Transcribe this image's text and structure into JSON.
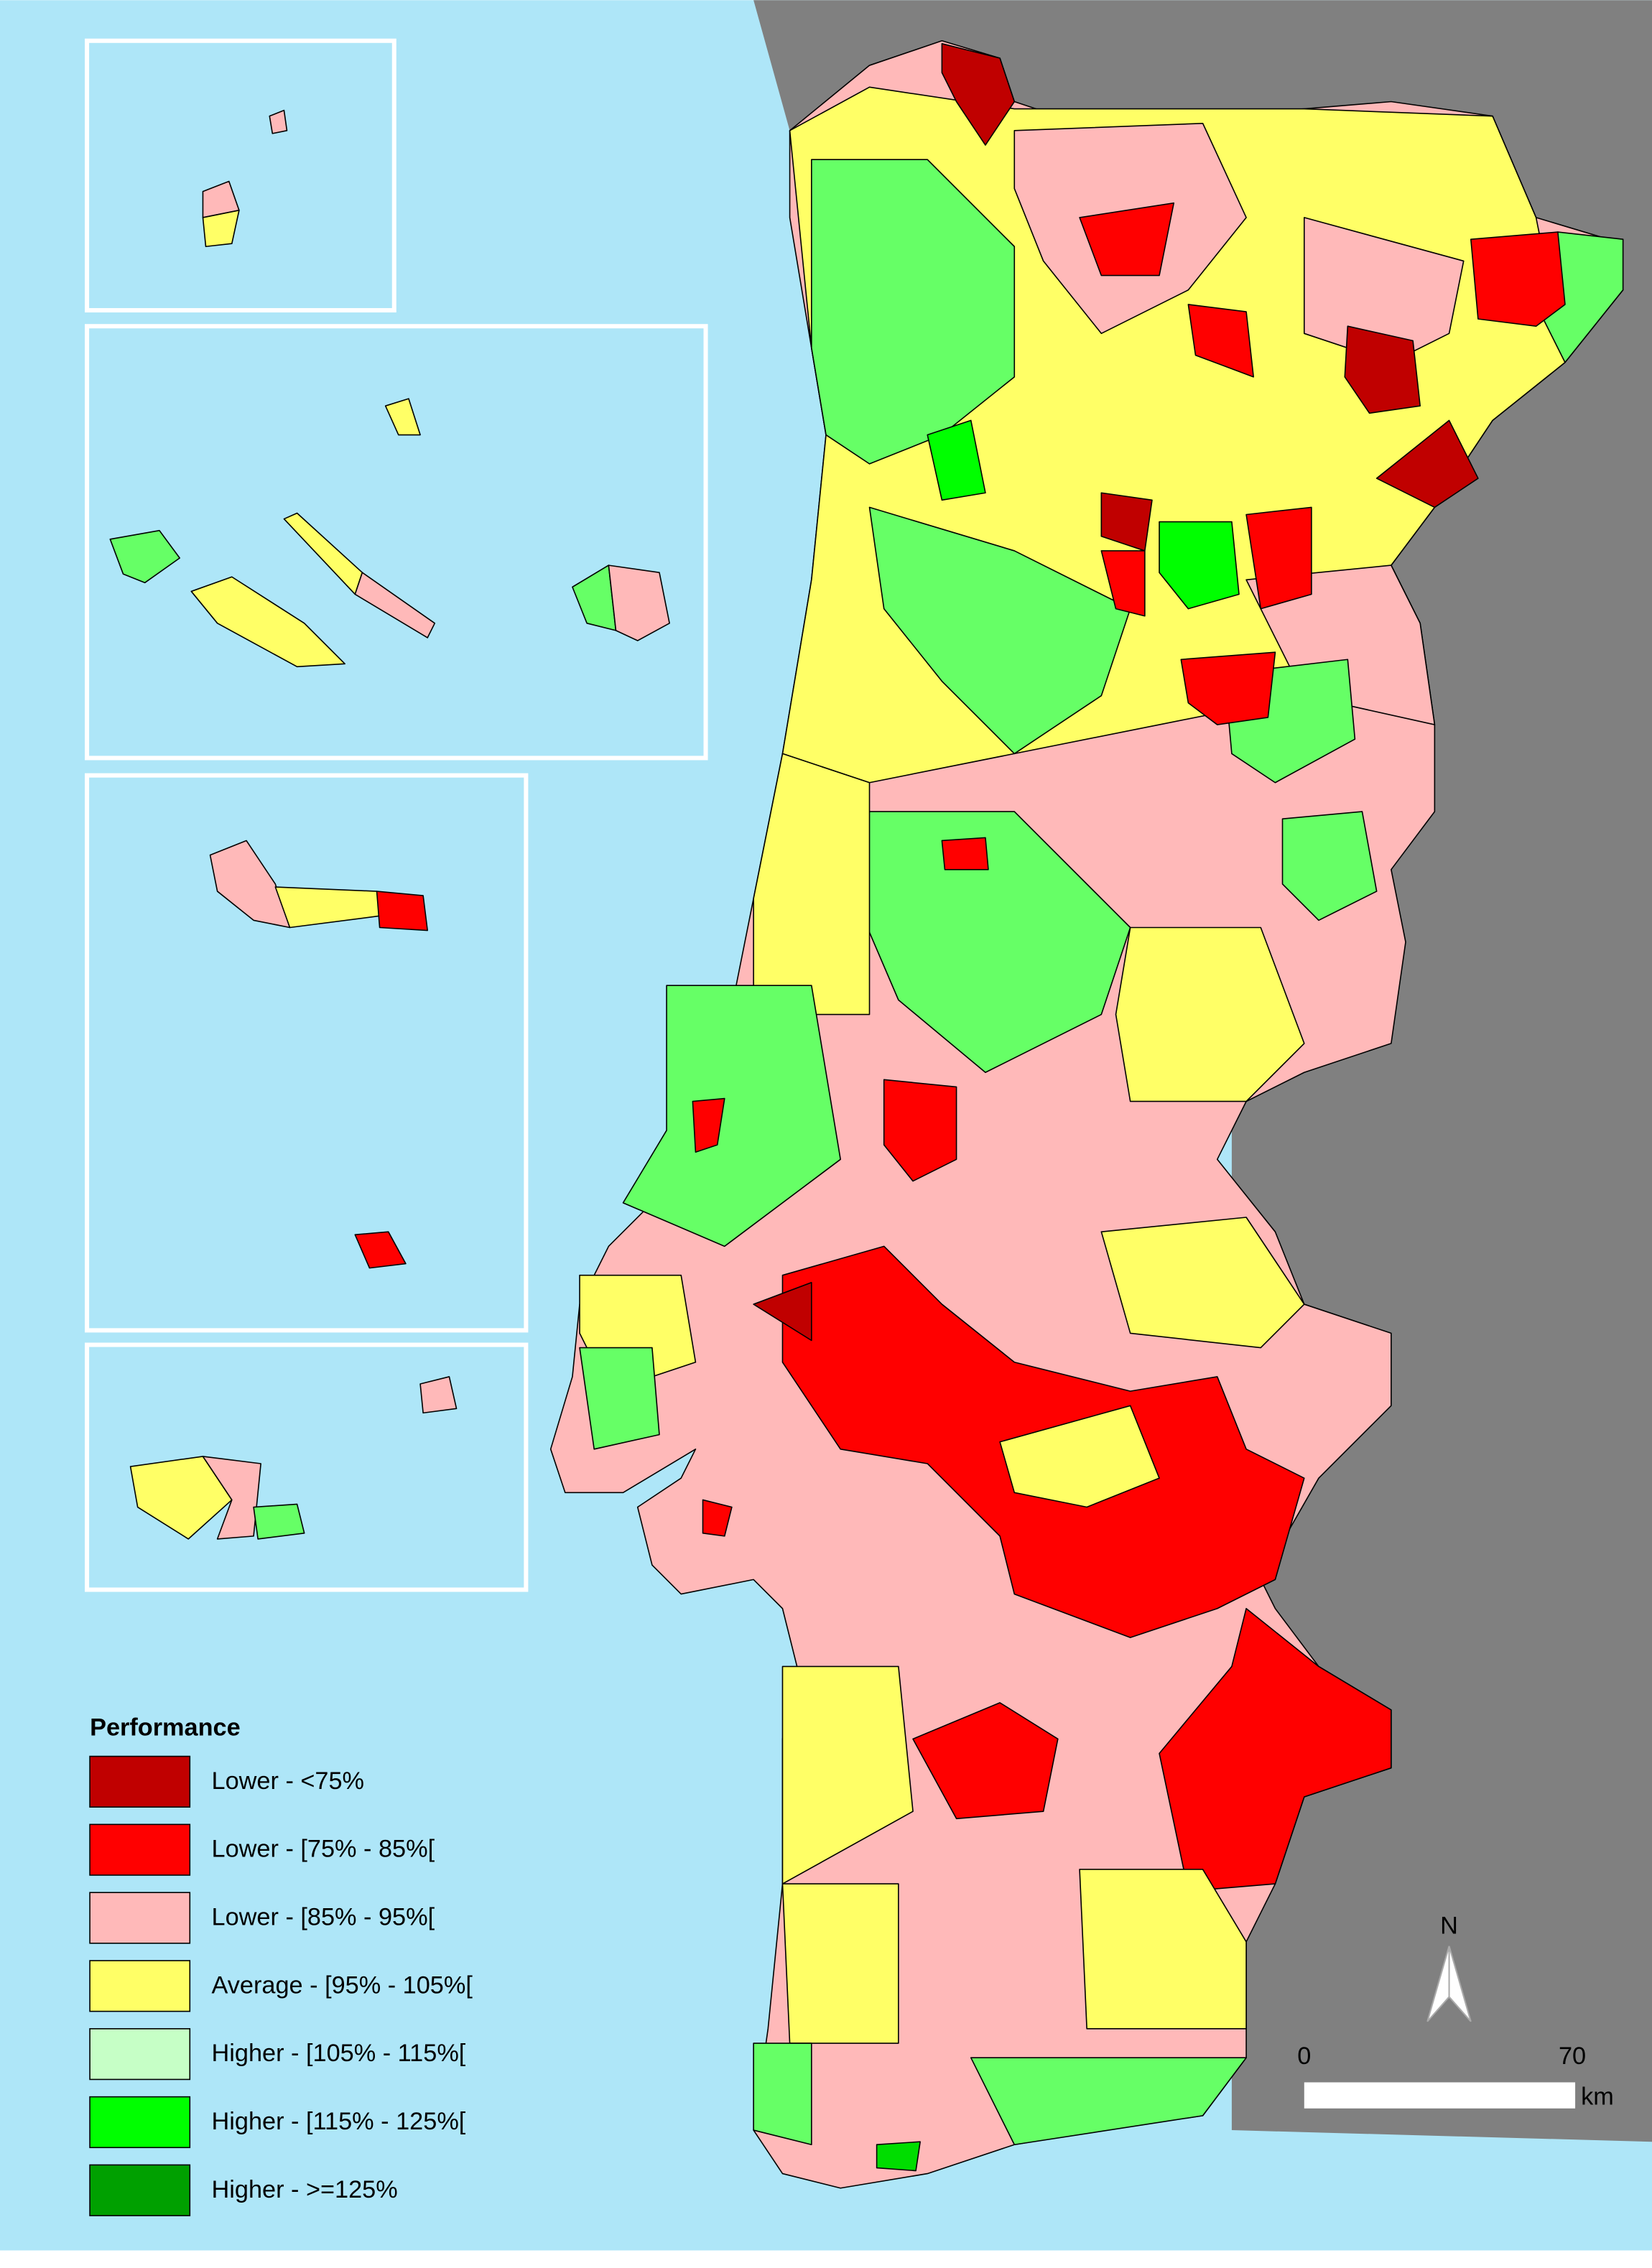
{
  "legend": {
    "title": "Performance",
    "items": [
      {
        "label": "Lower - <75%",
        "color": "#c00000"
      },
      {
        "label": "Lower - [75% - 85%[",
        "color": "#ff0000"
      },
      {
        "label": "Lower - [85% - 95%[",
        "color": "#ffb9b9"
      },
      {
        "label": "Average - [95% - 105%[",
        "color": "#ffff66"
      },
      {
        "label": "Higher - [105% - 115%[",
        "color": "#c6ffc6"
      },
      {
        "label": "Higher - [115% - 125%[",
        "color": "#00ff00"
      },
      {
        "label": "Higher - >=125%",
        "color": "#00a000"
      }
    ]
  },
  "north_arrow": "N",
  "scale_bar": {
    "start": "0",
    "end": "70",
    "unit": "km"
  }
}
